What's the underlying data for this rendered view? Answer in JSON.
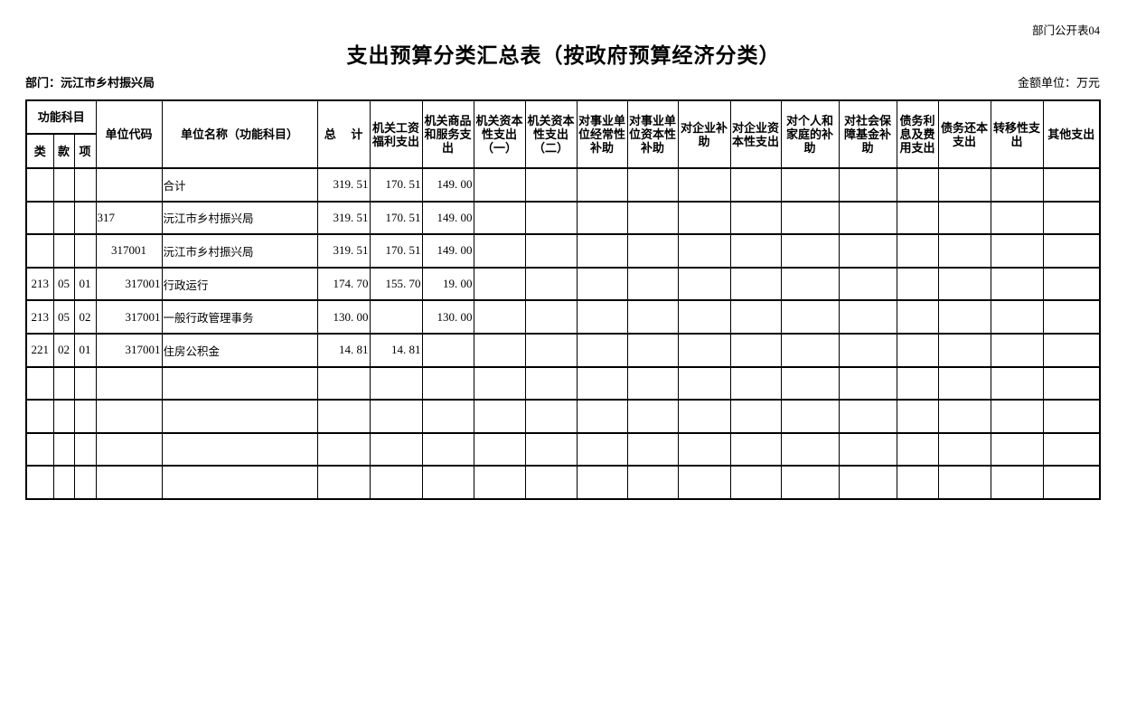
{
  "meta": {
    "doc_label": "部门公开表04",
    "title": "支出预算分类汇总表（按政府预算经济分类）",
    "department": "部门：沅江市乡村振兴局",
    "amount_unit": "金额单位：万元"
  },
  "table": {
    "header": {
      "func_group": "功能科目",
      "class": "类",
      "section": "款",
      "item": "项",
      "unit_code": "单位代码",
      "unit_name": "单位名称（功能科目）",
      "total": "总　 计",
      "categories": [
        "机关工资福利支出",
        "机关商品和服务支出",
        "机关资本性支出（一）",
        "机关资本性支出（二）",
        "对事业单位经常性补助",
        "对事业单位资本性补助",
        "对企业补助",
        "对企业资本性支出",
        "对个人和家庭的补助",
        "对社会保障基金补助",
        "债务利息及费用支出",
        "债务还本支出",
        "转移性支出",
        "其他支出"
      ]
    },
    "rows": [
      {
        "cls": "",
        "sec": "",
        "item": "",
        "code": "",
        "code_align": "left",
        "name": "合计",
        "indent": 0,
        "values": [
          "319. 51",
          "170. 51",
          "149. 00",
          "",
          "",
          "",
          "",
          "",
          "",
          "",
          "",
          "",
          "",
          "",
          ""
        ]
      },
      {
        "cls": "",
        "sec": "",
        "item": "",
        "code": "317",
        "code_align": "left",
        "name": "沅江市乡村振兴局",
        "indent": 0,
        "values": [
          "319. 51",
          "170. 51",
          "149. 00",
          "",
          "",
          "",
          "",
          "",
          "",
          "",
          "",
          "",
          "",
          "",
          ""
        ]
      },
      {
        "cls": "",
        "sec": "",
        "item": "",
        "code": "317001",
        "code_align": "center",
        "name": "沅江市乡村振兴局",
        "indent": 1,
        "values": [
          "319. 51",
          "170. 51",
          "149. 00",
          "",
          "",
          "",
          "",
          "",
          "",
          "",
          "",
          "",
          "",
          "",
          ""
        ]
      },
      {
        "cls": "213",
        "sec": "05",
        "item": "01",
        "code": "317001",
        "code_align": "right",
        "name": "行政运行",
        "indent": 2,
        "values": [
          "174. 70",
          "155. 70",
          "19. 00",
          "",
          "",
          "",
          "",
          "",
          "",
          "",
          "",
          "",
          "",
          "",
          ""
        ]
      },
      {
        "cls": "213",
        "sec": "05",
        "item": "02",
        "code": "317001",
        "code_align": "right",
        "name": "一般行政管理事务",
        "indent": 2,
        "values": [
          "130. 00",
          "",
          "130. 00",
          "",
          "",
          "",
          "",
          "",
          "",
          "",
          "",
          "",
          "",
          "",
          ""
        ]
      },
      {
        "cls": "221",
        "sec": "02",
        "item": "01",
        "code": "317001",
        "code_align": "right",
        "name": "住房公积金",
        "indent": 2,
        "values": [
          "14. 81",
          "14. 81",
          "",
          "",
          "",
          "",
          "",
          "",
          "",
          "",
          "",
          "",
          "",
          "",
          ""
        ]
      },
      {
        "cls": "",
        "sec": "",
        "item": "",
        "code": "",
        "code_align": "left",
        "name": "",
        "indent": 0,
        "values": [
          "",
          "",
          "",
          "",
          "",
          "",
          "",
          "",
          "",
          "",
          "",
          "",
          "",
          "",
          ""
        ]
      },
      {
        "cls": "",
        "sec": "",
        "item": "",
        "code": "",
        "code_align": "left",
        "name": "",
        "indent": 0,
        "values": [
          "",
          "",
          "",
          "",
          "",
          "",
          "",
          "",
          "",
          "",
          "",
          "",
          "",
          "",
          ""
        ]
      },
      {
        "cls": "",
        "sec": "",
        "item": "",
        "code": "",
        "code_align": "left",
        "name": "",
        "indent": 0,
        "values": [
          "",
          "",
          "",
          "",
          "",
          "",
          "",
          "",
          "",
          "",
          "",
          "",
          "",
          "",
          ""
        ]
      },
      {
        "cls": "",
        "sec": "",
        "item": "",
        "code": "",
        "code_align": "left",
        "name": "",
        "indent": 0,
        "values": [
          "",
          "",
          "",
          "",
          "",
          "",
          "",
          "",
          "",
          "",
          "",
          "",
          "",
          "",
          ""
        ]
      }
    ]
  }
}
